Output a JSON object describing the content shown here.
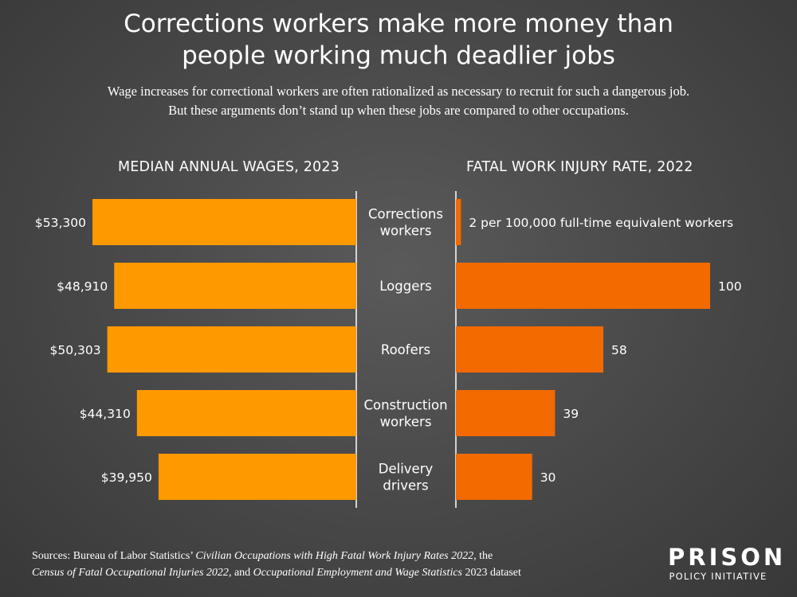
{
  "header": {
    "title_line1": "Corrections workers make more money than",
    "title_line2": "people working much deadlier jobs",
    "subtitle_line1": "Wage increases for correctional workers are often rationalized as necessary to recruit for such a dangerous job.",
    "subtitle_line2": "But these arguments don’t stand up when these jobs are compared to other occupations."
  },
  "chart_data": {
    "type": "bar",
    "categories": [
      [
        "Corrections",
        "workers"
      ],
      [
        "Loggers"
      ],
      [
        "Roofers"
      ],
      [
        "Construction",
        "workers"
      ],
      [
        "Delivery",
        "drivers"
      ]
    ],
    "panels": [
      {
        "title": "MEDIAN ANNUAL WAGES, 2023",
        "values": [
          53300,
          48910,
          50303,
          44310,
          39950
        ],
        "labels": [
          "$53,300",
          "$48,910",
          "$50,303",
          "$44,310",
          "$39,950"
        ],
        "orientation": "leftward",
        "color": "#FF9900"
      },
      {
        "title": "FATAL WORK INJURY RATE, 2022",
        "values": [
          2,
          100,
          58,
          39,
          30
        ],
        "labels": [
          "2 per 100,000 full-time equivalent workers",
          "100",
          "58",
          "39",
          "30"
        ],
        "orientation": "rightward",
        "color": "#F26A00"
      }
    ]
  },
  "footer": {
    "sources_prefix": "Sources: Bureau of Labor Statistics’ ",
    "sources_italic1": "Civilian Occupations with High Fatal Work Injury Rates 2022",
    "sources_mid": ", the",
    "sources_italic2": "Census of Fatal Occupational Injuries 2022",
    "sources_mid2": ", and ",
    "sources_italic3": "Occupational Employment and Wage Statistics",
    "sources_suffix": " 2023 dataset",
    "logo_top": "PRISON",
    "logo_bottom": "POLICY INITIATIVE"
  }
}
